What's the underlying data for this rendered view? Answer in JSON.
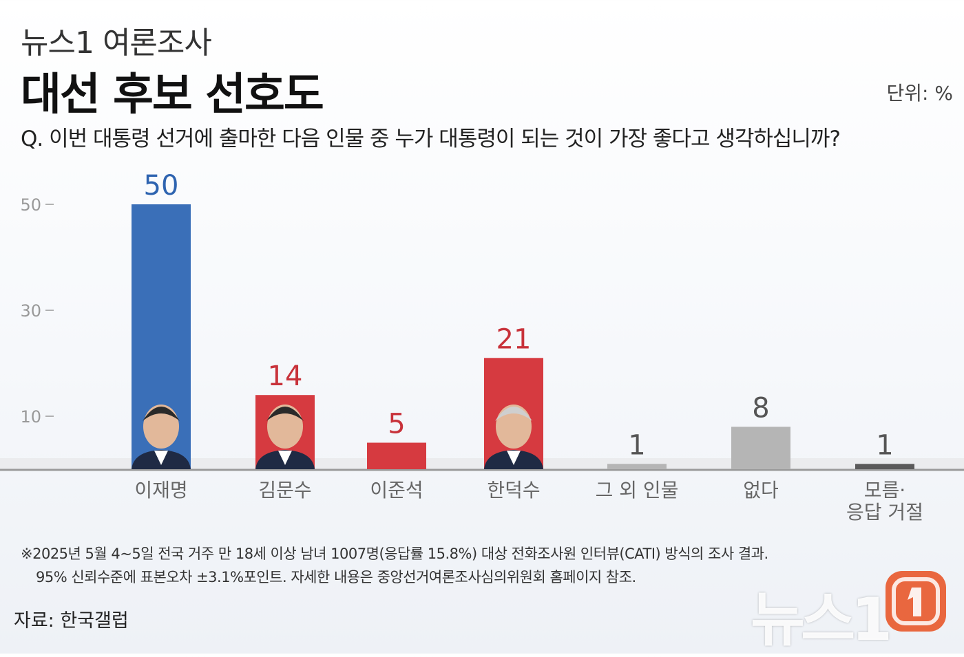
{
  "header": {
    "subtitle": "뉴스1 여론조사",
    "title": "대선 후보 선호도",
    "unit": "단위: %",
    "question": "Q. 이번 대통령 선거에 출마한 다음 인물 중 누가 대통령이 되는 것이 가장 좋다고 생각하십니까?"
  },
  "chart_data": {
    "type": "bar",
    "title": "대선 후보 선호도",
    "categories": [
      "이재명",
      "김문수",
      "이준석",
      "한덕수",
      "그 외 인물",
      "없다",
      "모름·\n응답 거절"
    ],
    "values": [
      50,
      14,
      5,
      21,
      1,
      8,
      1
    ],
    "colors": [
      "#3a6fb8",
      "#d63a40",
      "#d63a40",
      "#d63a40",
      "#b5b5b5",
      "#b5b5b5",
      "#5a5a5a"
    ],
    "label_colors": [
      "#2e64b0",
      "#c8323a",
      "#c8323a",
      "#c8323a",
      "#555555",
      "#555555",
      "#555555"
    ],
    "yticks": [
      10,
      30,
      50
    ],
    "ylim": [
      0,
      50
    ],
    "grid": false,
    "legend": "none"
  },
  "notes": [
    "※2025년 5월 4~5일 전국 거주 만 18세 이상 남녀 1007명(응답률 15.8%) 대상 전화조사원 인터뷰(CATI) 방식의 조사 결과.",
    "95% 신뢰수준에 표본오차 ±3.1%포인트. 자세한 내용은 중앙선거여론조사심의위원회 홈페이지 참조."
  ],
  "source": "자료: 한국갤럽",
  "logo": {
    "text": "뉴스1",
    "icon": "news1-logo-icon"
  }
}
